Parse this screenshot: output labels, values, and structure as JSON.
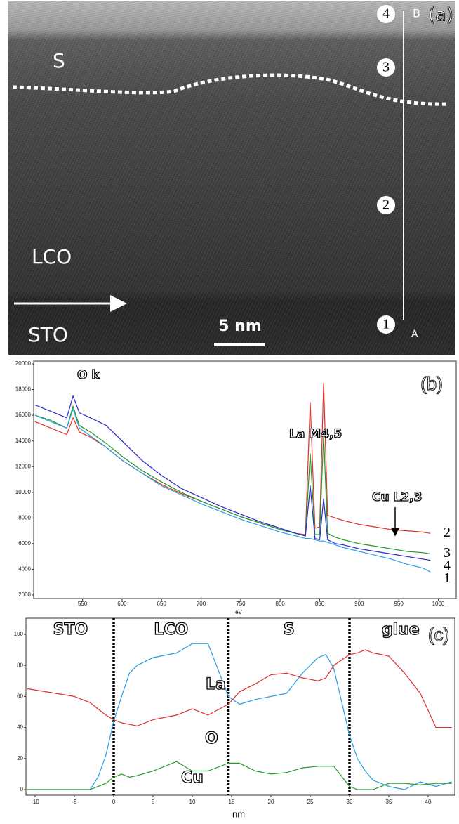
{
  "image_panel": {
    "panel_label": "(a)",
    "layer_labels": [
      "S",
      "LCO",
      "STO"
    ],
    "scale_bar": "5 nm",
    "line_end_labels": [
      "B",
      "A"
    ],
    "point_labels": [
      "4",
      "3",
      "2",
      "1"
    ]
  },
  "chart_data": [
    {
      "type": "line",
      "panel_label": "(b)",
      "x_label": "eV",
      "x": [
        490,
        510,
        530,
        538,
        546,
        560,
        580,
        600,
        625,
        650,
        675,
        700,
        725,
        750,
        775,
        800,
        820,
        832,
        838,
        844,
        850,
        855,
        860,
        870,
        880,
        900,
        920,
        940,
        960,
        980,
        990
      ],
      "xlim": [
        490,
        1020
      ],
      "xticks": [
        550,
        600,
        650,
        700,
        750,
        800,
        850,
        900,
        950,
        1000
      ],
      "ylim": [
        2000,
        20000
      ],
      "yticks": [
        2000,
        4000,
        6000,
        8000,
        10000,
        12000,
        14000,
        16000,
        18000,
        20000
      ],
      "annotations": [
        "O k",
        "La M4,5",
        "Cu L2,3"
      ],
      "series": [
        {
          "name": "2",
          "color": "#e0302a",
          "values": [
            15500,
            15000,
            14500,
            15800,
            14700,
            14300,
            13500,
            12500,
            11500,
            10600,
            9900,
            9300,
            8700,
            8100,
            7600,
            7100,
            6800,
            6700,
            17000,
            7200,
            7300,
            18500,
            8200,
            8000,
            7800,
            7500,
            7300,
            7100,
            7000,
            6900,
            6800
          ]
        },
        {
          "name": "3",
          "color": "#1f9a2a",
          "values": [
            16000,
            15600,
            15000,
            16700,
            15200,
            14700,
            13800,
            12800,
            11700,
            10800,
            10000,
            9300,
            8700,
            8100,
            7600,
            7100,
            6800,
            6600,
            13000,
            6700,
            6700,
            14500,
            6800,
            6500,
            6300,
            6000,
            5800,
            5600,
            5400,
            5300,
            5200
          ]
        },
        {
          "name": "4",
          "color": "#2a2ad0",
          "values": [
            16800,
            16300,
            15800,
            17500,
            16200,
            15800,
            15200,
            14000,
            12500,
            11300,
            10300,
            9600,
            8900,
            8300,
            7700,
            7200,
            6800,
            6600,
            10500,
            6400,
            6300,
            9500,
            6300,
            6000,
            5900,
            5600,
            5400,
            5200,
            5000,
            4800,
            4700
          ]
        },
        {
          "name": "1",
          "color": "#2aa0e0",
          "values": [
            16000,
            15500,
            15000,
            16500,
            15000,
            14400,
            13500,
            12500,
            11500,
            10500,
            9800,
            9100,
            8500,
            7900,
            7400,
            6900,
            6600,
            6400,
            6400,
            6300,
            6200,
            6200,
            6100,
            5900,
            5700,
            5400,
            5100,
            4800,
            4400,
            4100,
            3800
          ]
        }
      ]
    },
    {
      "type": "line",
      "panel_label": "(c)",
      "x_label": "nm",
      "x": [
        -11,
        -5,
        -3,
        -2,
        -1,
        0,
        1,
        2,
        3,
        5,
        8,
        10,
        12,
        14.6,
        16,
        18,
        20,
        22,
        24,
        26,
        27,
        28,
        30,
        31,
        32,
        33,
        35,
        37,
        39,
        41,
        43
      ],
      "xlim": [
        -11,
        43
      ],
      "xticks": [
        -10,
        -5,
        0,
        5,
        10,
        15,
        20,
        25,
        30,
        35,
        40
      ],
      "ylim": [
        0,
        100
      ],
      "yticks": [
        0,
        20,
        40,
        60,
        80,
        100
      ],
      "dividers": [
        0,
        14.6,
        30
      ],
      "region_labels": [
        "STO",
        "LCO",
        "S",
        "glue"
      ],
      "series": [
        {
          "name": "La",
          "color": "#2a9ee0",
          "values": [
            0,
            0,
            0,
            8,
            22,
            44,
            60,
            75,
            80,
            85,
            88,
            94,
            94,
            60,
            55,
            58,
            60,
            62,
            75,
            85,
            87,
            78,
            35,
            20,
            12,
            6,
            2,
            0,
            5,
            2,
            5
          ]
        },
        {
          "name": "O",
          "color": "#e03030",
          "values": [
            65,
            60,
            56,
            52,
            48,
            45,
            43,
            42,
            41,
            45,
            48,
            52,
            48,
            55,
            63,
            68,
            74,
            75,
            72,
            70,
            72,
            80,
            87,
            88,
            90,
            88,
            86,
            75,
            62,
            40,
            40
          ]
        },
        {
          "name": "Cu",
          "color": "#2a9a2a",
          "values": [
            0,
            0,
            0,
            2,
            4,
            8,
            10,
            8,
            9,
            12,
            18,
            12,
            12,
            17,
            17,
            12,
            10,
            11,
            14,
            15,
            15,
            15,
            2,
            0,
            0,
            0,
            4,
            4,
            3,
            4,
            4
          ]
        }
      ]
    }
  ]
}
